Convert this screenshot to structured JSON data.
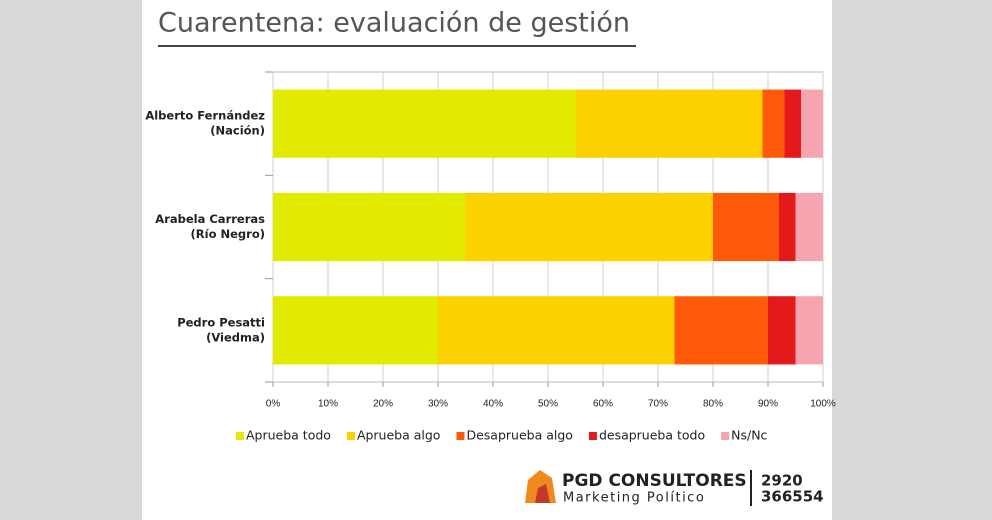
{
  "chart_data": {
    "type": "stacked-barh",
    "title": "Cuarentena: evaluación de gestión",
    "categories": [
      [
        "Alberto Fernández",
        "(Nación)"
      ],
      [
        "Arabela Carreras",
        "(Río Negro)"
      ],
      [
        "Pedro Pesatti",
        "(Viedma)"
      ]
    ],
    "series": [
      {
        "name": "Aprueba todo",
        "color": "#e2ea00",
        "values": [
          55,
          35,
          30
        ]
      },
      {
        "name": "Aprueba algo",
        "color": "#fdd000",
        "values": [
          34,
          45,
          43
        ]
      },
      {
        "name": "Desaprueba algo",
        "color": "#ff5a0a",
        "values": [
          4,
          12,
          17
        ]
      },
      {
        "name": "desaprueba todo",
        "color": "#e3191b",
        "values": [
          3,
          3,
          5
        ]
      },
      {
        "name": "Ns/Nc",
        "color": "#f7a4b1",
        "values": [
          4,
          5,
          5
        ]
      }
    ],
    "xlim": [
      0,
      100
    ],
    "xticks": [
      {
        "value": 0,
        "label": "0%"
      },
      {
        "value": 10,
        "label": "10%"
      },
      {
        "value": 20,
        "label": "20%"
      },
      {
        "value": 30,
        "label": "30%"
      },
      {
        "value": 40,
        "label": "40%"
      },
      {
        "value": 50,
        "label": "50%"
      },
      {
        "value": 60,
        "label": "60%"
      },
      {
        "value": 70,
        "label": "70%"
      },
      {
        "value": 80,
        "label": "80%"
      },
      {
        "value": 90,
        "label": "90%"
      },
      {
        "value": 100,
        "label": "100%"
      }
    ],
    "grid": true,
    "legend": "bottom"
  },
  "branding": {
    "name": "PGD CONSULTORES",
    "tagline": "Marketing Político",
    "phone": [
      "2920",
      "366554"
    ]
  }
}
